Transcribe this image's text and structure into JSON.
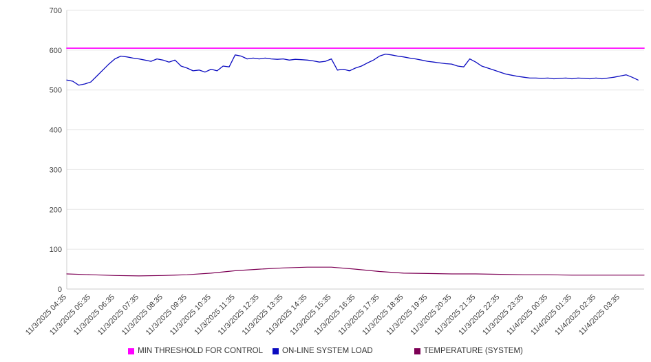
{
  "chart_data": {
    "type": "line",
    "title": "",
    "ylim": [
      0,
      700
    ],
    "yticks": [
      0,
      100,
      200,
      300,
      400,
      500,
      600,
      700
    ],
    "x_domain_hours": 24,
    "grid": "horizontal",
    "grid_color": "#e6e6e6",
    "axis_color": "#cccccc",
    "text_color": "#404040",
    "legend_position": "bottom",
    "x_labels": [
      "11/3/2025 04:35",
      "11/3/2025 05:35",
      "11/3/2025 06:35",
      "11/3/2025 07:35",
      "11/3/2025 08:35",
      "11/3/2025 09:35",
      "11/3/2025 10:35",
      "11/3/2025 11:35",
      "11/3/2025 12:35",
      "11/3/2025 13:35",
      "11/3/2025 14:35",
      "11/3/2025 15:35",
      "11/3/2025 16:35",
      "11/3/2025 17:35",
      "11/3/2025 18:35",
      "11/3/2025 19:35",
      "11/3/2025 20:35",
      "11/3/2025 21:35",
      "11/3/2025 22:35",
      "11/3/2025 23:35",
      "11/4/2025 00:35",
      "11/4/2025 01:35",
      "11/4/2025 02:35",
      "11/4/2025 03:35"
    ],
    "series": [
      {
        "id": "min-threshold",
        "name": "MIN THRESHOLD FOR CONTROL",
        "color": "#ff00ff",
        "width": 1.8,
        "constant": 605
      },
      {
        "id": "system-load",
        "name": "ON-LINE SYSTEM LOAD",
        "color": "#0b0bc0",
        "width": 1.3,
        "step_hours": 0.25,
        "values": [
          525,
          522,
          512,
          515,
          520,
          535,
          550,
          565,
          578,
          585,
          583,
          580,
          578,
          575,
          572,
          578,
          575,
          570,
          575,
          560,
          555,
          548,
          550,
          545,
          552,
          548,
          560,
          558,
          588,
          585,
          578,
          580,
          578,
          580,
          578,
          577,
          578,
          575,
          577,
          576,
          575,
          573,
          570,
          572,
          578,
          550,
          552,
          548,
          555,
          560,
          568,
          575,
          585,
          590,
          588,
          585,
          583,
          580,
          578,
          575,
          572,
          570,
          568,
          566,
          565,
          560,
          558,
          578,
          570,
          560,
          555,
          550,
          545,
          540,
          537,
          534,
          532,
          530,
          530,
          529,
          530,
          528,
          529,
          530,
          528,
          530,
          529,
          528,
          530,
          528,
          530,
          532,
          535,
          538,
          532,
          525
        ]
      },
      {
        "id": "temperature",
        "name": "TEMPERATURE (SYSTEM)",
        "color": "#7d0055",
        "width": 1.2,
        "step_hours": 1,
        "values": [
          38,
          36,
          34,
          33,
          34,
          36,
          40,
          46,
          50,
          53,
          55,
          55,
          50,
          44,
          40,
          39,
          38,
          38,
          37,
          36,
          36,
          35,
          35,
          35,
          35
        ]
      }
    ]
  }
}
